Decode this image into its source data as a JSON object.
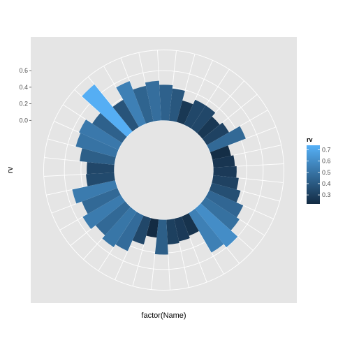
{
  "chart_data": {
    "type": "bar",
    "coord": "polar",
    "xlabel": "factor(Name)",
    "ylabel": "rv",
    "y_ticks": [
      0.0,
      0.2,
      0.4,
      0.6
    ],
    "y_tick_labels": [
      "0.0",
      "0.2",
      "0.4",
      "0.6"
    ],
    "ylim": [
      -0.6,
      0.85
    ],
    "grid": true,
    "values": [
      0.43,
      0.39,
      0.27,
      0.33,
      0.33,
      0.27,
      0.31,
      0.46,
      0.23,
      0.26,
      0.28,
      0.31,
      0.36,
      0.45,
      0.49,
      0.6,
      0.55,
      0.25,
      0.28,
      0.3,
      0.42,
      0.22,
      0.33,
      0.47,
      0.51,
      0.46,
      0.53,
      0.46,
      0.53,
      0.34,
      0.33,
      0.42,
      0.5,
      0.52,
      0.43,
      0.73,
      0.38,
      0.55,
      0.44,
      0.48
    ],
    "legend": {
      "title": "rv",
      "tick_values": [
        0.3,
        0.4,
        0.5,
        0.6,
        0.7
      ],
      "tick_labels": [
        "0.3",
        "0.4",
        "0.5",
        "0.6",
        "0.7"
      ],
      "range": [
        0.22,
        0.74
      ],
      "color_low": "#132b43",
      "color_high": "#56b1f7",
      "placement": "right"
    },
    "colors": {
      "panel_background": "#e5e5e5",
      "grid": "#ffffff",
      "page_background": "#ffffff"
    }
  }
}
